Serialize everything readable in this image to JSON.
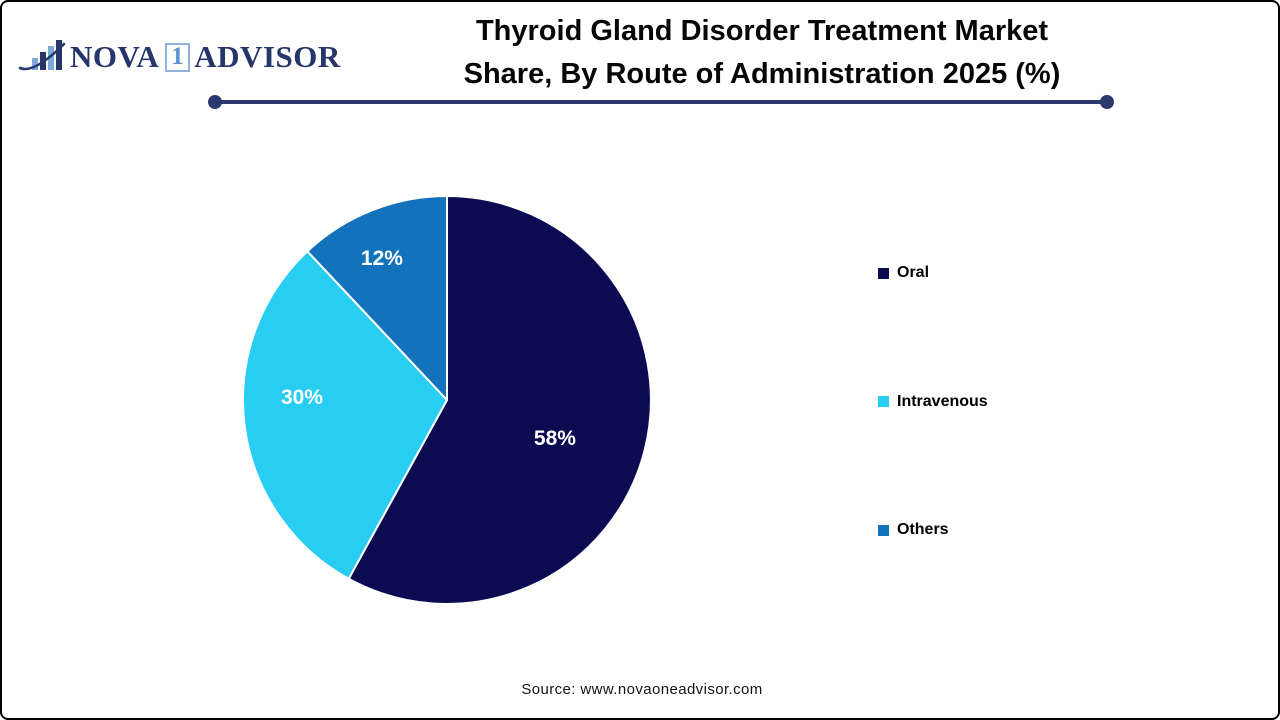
{
  "logo": {
    "name_part1": "NOVA",
    "name_digit": "1",
    "name_part2": "ADVISOR",
    "text_color": "#26366B",
    "accent_color": "#7FA9DA"
  },
  "header": {
    "title_line1": "Thyroid Gland Disorder Treatment Market",
    "title_line2": "Share, By Route of Administration 2025 (%)",
    "underline_color": "#2B3A6E"
  },
  "chart_data": {
    "type": "pie",
    "title": "Thyroid Gland Disorder Treatment Market Share, By Route of Administration 2025 (%)",
    "categories": [
      "Oral",
      "Intravenous",
      "Others"
    ],
    "values": [
      58,
      30,
      12
    ],
    "data_labels": [
      "58%",
      "30%",
      "12%"
    ],
    "colors": [
      "#0B0B52",
      "#29CDF2",
      "#1272BB"
    ],
    "start_angle_deg": 0,
    "direction": "clockwise",
    "legend_position": "right",
    "slice_border_color": "#FFFFFF",
    "data_label_color": "#FFFFFF"
  },
  "legend": {
    "items": [
      {
        "label": "Oral",
        "color": "#0B0B52"
      },
      {
        "label": "Intravenous",
        "color": "#29CDF2"
      },
      {
        "label": "Others",
        "color": "#1272BB"
      }
    ]
  },
  "footer": {
    "source_text": "Source: www.novaoneadvisor.com"
  }
}
